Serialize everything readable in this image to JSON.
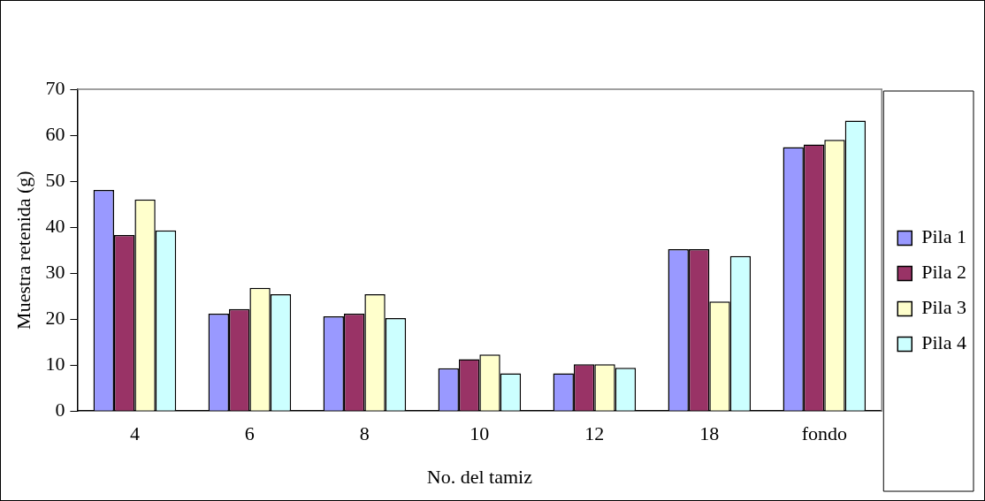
{
  "chart_data": {
    "type": "bar",
    "xlabel": "No. del tamiz",
    "ylabel": "Muestra retenida (g)",
    "categories": [
      "4",
      "6",
      "8",
      "10",
      "12",
      "18",
      "fondo"
    ],
    "series": [
      {
        "name": "Pila 1",
        "color": "#9999ff",
        "values": [
          48.1,
          21.2,
          20.6,
          9.3,
          8.2,
          35.2,
          57.4
        ]
      },
      {
        "name": "Pila 2",
        "color": "#993366",
        "values": [
          38.3,
          22.2,
          21.2,
          11.3,
          10.2,
          35.2,
          58.0
        ]
      },
      {
        "name": "Pila 3",
        "color": "#ffffcc",
        "values": [
          46.0,
          26.8,
          25.4,
          12.3,
          10.2,
          23.8,
          59.0
        ]
      },
      {
        "name": "Pila 4",
        "color": "#ccffff",
        "values": [
          39.3,
          25.4,
          20.2,
          8.2,
          9.4,
          33.7,
          63.2
        ]
      }
    ],
    "ylim": [
      0,
      70
    ],
    "yticks": [
      0,
      10,
      20,
      30,
      40,
      50,
      60,
      70
    ],
    "grid": false,
    "legend": "right"
  }
}
